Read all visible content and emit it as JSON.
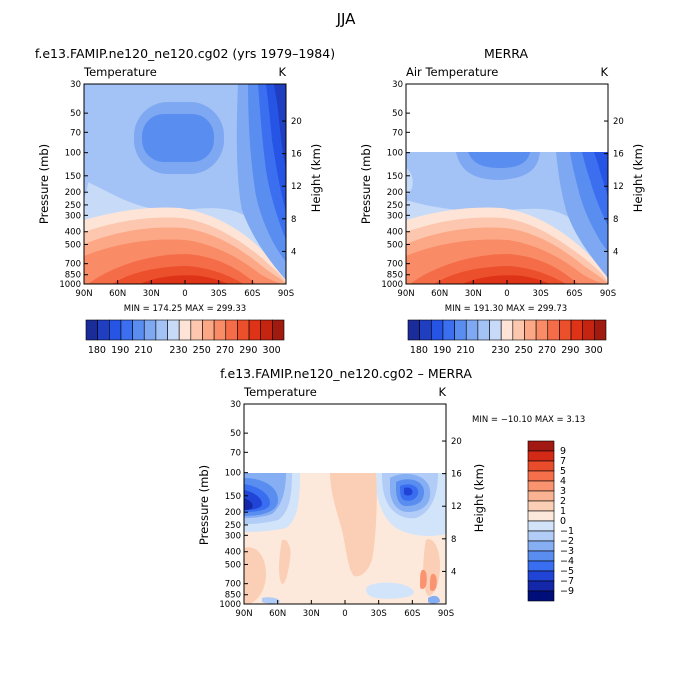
{
  "figure": {
    "title": "JJA"
  },
  "palettes": {
    "temperature": [
      "#1a2c9a",
      "#203ec0",
      "#2654e4",
      "#3b6ff0",
      "#5a8df0",
      "#7ea8f2",
      "#a3c2f5",
      "#c7dbf8",
      "#fde4d6",
      "#fcc7ae",
      "#fca887",
      "#f98b66",
      "#f46d48",
      "#ec4f2c",
      "#df3317",
      "#c52410",
      "#a01a10"
    ],
    "difference": [
      "#000e7a",
      "#1427a8",
      "#1f44d6",
      "#3a6ef0",
      "#5a8df0",
      "#86aef2",
      "#b1ccf6",
      "#d2e4fa",
      "#fde9dc",
      "#fbcfb6",
      "#fab392",
      "#f99370",
      "#f5704a",
      "#e84c2b",
      "#d22a17",
      "#a21812"
    ]
  },
  "panels": [
    {
      "title": "f.e13.FAMIP.ne120_ne120.cg02 (yrs 1979–1984)",
      "variable": "Temperature",
      "units": "K",
      "stats": "MIN = 174.25   MAX = 299.33"
    },
    {
      "title": "MERRA",
      "variable": "Air Temperature",
      "units": "K",
      "stats": "MIN = 191.30   MAX = 299.73"
    },
    {
      "title": "f.e13.FAMIP.ne120_ne120.cg02 – MERRA",
      "variable": "Temperature",
      "units": "K",
      "stats": "MIN = −10.10   MAX =    3.13"
    }
  ],
  "chart_data": [
    {
      "type": "heatmap",
      "title": "f.e13.FAMIP.ne120_ne120.cg02 (yrs 1979–1984)",
      "subtitle": "Temperature",
      "units": "K",
      "xlabel": "",
      "ylabel": "Pressure (mb)",
      "y2label": "Height (km)",
      "x_ticks": [
        "90N",
        "60N",
        "30N",
        "0",
        "30S",
        "60S",
        "90S"
      ],
      "y_ticks": [
        "30",
        "50",
        "70",
        "100",
        "150",
        "200",
        "250",
        "300",
        "400",
        "500",
        "700",
        "850",
        "1000"
      ],
      "y2_ticks": [
        "20",
        "16",
        "12",
        "8",
        "4"
      ],
      "ylim": [
        1000,
        30
      ],
      "y_scale": "log",
      "colorbar_labels": [
        "180",
        "190",
        "210",
        "230",
        "250",
        "270",
        "290",
        "300"
      ],
      "min": 174.25,
      "max": 299.33
    },
    {
      "type": "heatmap",
      "title": "MERRA",
      "subtitle": "Air Temperature",
      "units": "K",
      "xlabel": "",
      "ylabel": "Pressure (mb)",
      "y2label": "Height (km)",
      "x_ticks": [
        "90N",
        "60N",
        "30N",
        "0",
        "30S",
        "60S",
        "90S"
      ],
      "y_ticks": [
        "30",
        "50",
        "70",
        "100",
        "150",
        "200",
        "250",
        "300",
        "400",
        "500",
        "700",
        "850",
        "1000"
      ],
      "y2_ticks": [
        "20",
        "16",
        "12",
        "8",
        "4"
      ],
      "ylim": [
        1000,
        30
      ],
      "y_scale": "log",
      "data_top_pressure": 100,
      "colorbar_labels": [
        "180",
        "190",
        "210",
        "230",
        "250",
        "270",
        "290",
        "300"
      ],
      "min": 191.3,
      "max": 299.73
    },
    {
      "type": "heatmap",
      "title": "f.e13.FAMIP.ne120_ne120.cg02 – MERRA",
      "subtitle": "Temperature",
      "units": "K",
      "xlabel": "",
      "ylabel": "Pressure (mb)",
      "y2label": "Height (km)",
      "x_ticks": [
        "90N",
        "60N",
        "30N",
        "0",
        "30S",
        "60S",
        "90S"
      ],
      "y_ticks": [
        "30",
        "50",
        "70",
        "100",
        "150",
        "200",
        "250",
        "300",
        "400",
        "500",
        "700",
        "850",
        "1000"
      ],
      "y2_ticks": [
        "20",
        "16",
        "12",
        "8",
        "4"
      ],
      "ylim": [
        1000,
        30
      ],
      "y_scale": "log",
      "data_top_pressure": 100,
      "colorbar_labels": [
        "9",
        "7",
        "5",
        "4",
        "3",
        "2",
        "1",
        "0",
        "−1",
        "−2",
        "−3",
        "−4",
        "−5",
        "−7",
        "−9"
      ],
      "min": -10.1,
      "max": 3.13
    }
  ]
}
